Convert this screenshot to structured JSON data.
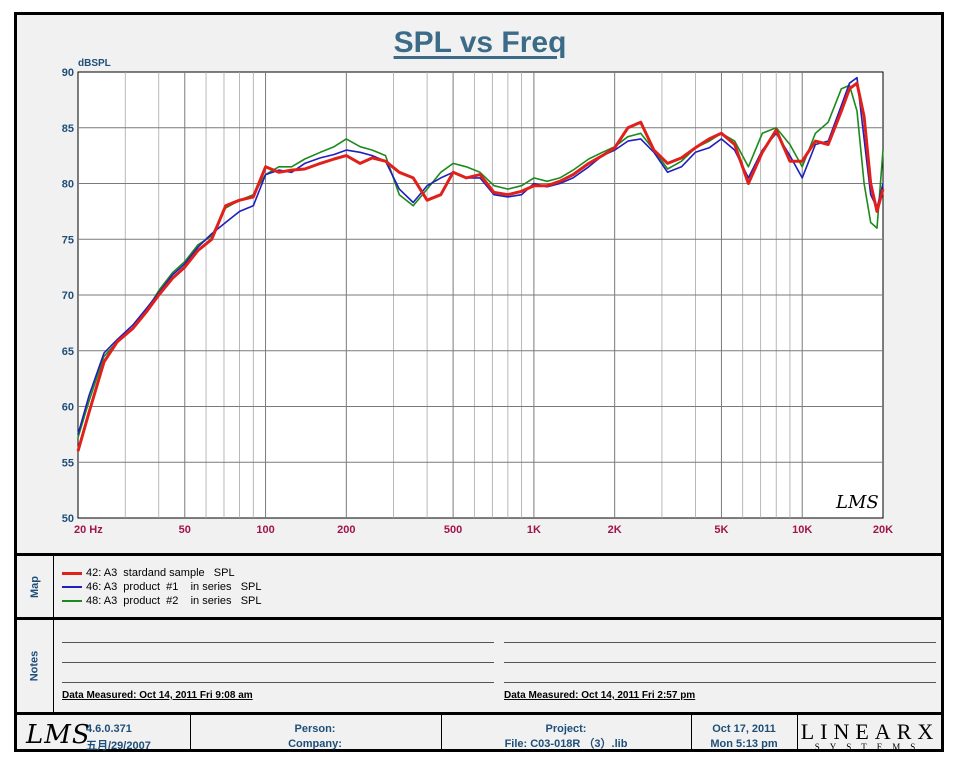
{
  "title": "SPL vs Freq",
  "chart_data": {
    "type": "line",
    "title": "SPL vs Freq",
    "ylabel": "dBSPL",
    "xlabel": "",
    "xscale": "log",
    "xlim": [
      20,
      20000
    ],
    "ylim": [
      50,
      90
    ],
    "grid": true,
    "x_tick_values": [
      20,
      50,
      100,
      200,
      500,
      1000,
      2000,
      5000,
      10000,
      20000
    ],
    "x_tick_labels": [
      "20  Hz",
      "50",
      "100",
      "200",
      "500",
      "1K",
      "2K",
      "5K",
      "10K",
      "20K"
    ],
    "y_tick_values": [
      50,
      55,
      60,
      65,
      70,
      75,
      80,
      85,
      90
    ],
    "y_tick_labels": [
      "50",
      "55",
      "60",
      "65",
      "70",
      "75",
      "80",
      "85",
      "90"
    ],
    "x": [
      20,
      22,
      25,
      28,
      32,
      36,
      40,
      45,
      50,
      56,
      63,
      71,
      80,
      90,
      100,
      112,
      125,
      140,
      160,
      180,
      200,
      225,
      250,
      280,
      315,
      355,
      400,
      450,
      500,
      560,
      630,
      710,
      800,
      900,
      1000,
      1120,
      1250,
      1400,
      1600,
      1800,
      2000,
      2240,
      2500,
      2800,
      3150,
      3550,
      4000,
      4500,
      5000,
      5600,
      6300,
      7100,
      8000,
      9000,
      10000,
      11200,
      12500,
      14000,
      15000,
      16000,
      17000,
      18000,
      19000,
      20000
    ],
    "series": [
      {
        "name": "42: A3  stardand sample   SPL",
        "color": "#e0201b",
        "values": [
          56.0,
          59.5,
          64.0,
          65.8,
          67.0,
          68.5,
          70.0,
          71.5,
          72.5,
          74.0,
          75.0,
          78.0,
          78.5,
          78.8,
          81.5,
          81.0,
          81.2,
          81.3,
          81.8,
          82.2,
          82.5,
          81.8,
          82.3,
          82.0,
          81.0,
          80.5,
          78.5,
          79.0,
          81.0,
          80.5,
          80.8,
          79.2,
          79.0,
          79.3,
          79.8,
          79.8,
          80.2,
          80.8,
          81.8,
          82.5,
          83.2,
          85.0,
          85.5,
          83.0,
          81.8,
          82.3,
          83.2,
          84.0,
          84.5,
          83.5,
          80.0,
          82.8,
          84.8,
          82.0,
          82.0,
          83.8,
          83.5,
          86.5,
          88.5,
          89.0,
          86.0,
          80.0,
          77.5,
          79.5
        ]
      },
      {
        "name": "46: A3  product  #1    in series   SPL",
        "color": "#1f1fbf",
        "values": [
          57.5,
          61.0,
          64.8,
          66.0,
          67.3,
          68.8,
          70.2,
          71.8,
          72.8,
          74.3,
          75.5,
          76.5,
          77.5,
          78.0,
          80.8,
          81.2,
          81.0,
          81.8,
          82.3,
          82.6,
          83.0,
          82.8,
          82.5,
          82.0,
          79.5,
          78.3,
          79.8,
          80.5,
          81.0,
          80.5,
          80.5,
          79.0,
          78.8,
          79.0,
          80.0,
          79.7,
          80.0,
          80.5,
          81.5,
          82.5,
          83.0,
          83.8,
          84.0,
          82.8,
          81.0,
          81.5,
          82.8,
          83.2,
          84.0,
          83.0,
          80.5,
          83.0,
          84.5,
          82.5,
          80.5,
          83.5,
          83.8,
          87.0,
          89.0,
          89.5,
          84.0,
          79.0,
          77.8,
          80.0
        ]
      },
      {
        "name": "48: A3  product  #2    in series   SPL",
        "color": "#1d8a1d",
        "values": [
          57.2,
          60.5,
          64.5,
          65.8,
          67.0,
          68.6,
          70.4,
          72.0,
          73.0,
          74.5,
          75.3,
          77.8,
          78.5,
          79.0,
          80.8,
          81.5,
          81.5,
          82.2,
          82.8,
          83.3,
          84.0,
          83.3,
          83.0,
          82.5,
          79.0,
          78.0,
          79.5,
          81.0,
          81.8,
          81.5,
          81.0,
          79.8,
          79.5,
          79.8,
          80.5,
          80.2,
          80.5,
          81.2,
          82.2,
          82.8,
          83.3,
          84.2,
          84.5,
          83.0,
          81.3,
          82.0,
          83.2,
          83.8,
          84.5,
          83.8,
          81.5,
          84.5,
          85.0,
          83.5,
          81.5,
          84.5,
          85.5,
          88.5,
          88.8,
          86.5,
          80.0,
          76.5,
          76.0,
          83.0
        ]
      }
    ]
  },
  "map": {
    "side_label": "Map",
    "legend": [
      {
        "label": "42: A3  stardand sample   SPL",
        "color": "#e0201b"
      },
      {
        "label": "46: A3  product  #1    in series   SPL",
        "color": "#1f1fbf"
      },
      {
        "label": "48: A3  product  #2    in series   SPL",
        "color": "#1d8a1d"
      }
    ]
  },
  "notes": {
    "side_label": "Notes",
    "left_date": "Data Measured: Oct 14, 2011  Fri  9:08 am",
    "right_date": "Data Measured: Oct 14, 2011  Fri  2:57 pm"
  },
  "footer": {
    "logo": "LMS",
    "version": "4.6.0.371",
    "build_date": "五月/29/2007",
    "person_label": "Person:",
    "company_label": "Company:",
    "project_label": "Project:",
    "file_label": "File: C03-018R   （3）.lib",
    "date": "Oct 17, 2011",
    "time": "Mon  5:13 pm",
    "brand_big": "LINEARX",
    "brand_small": "SYSTEMS"
  }
}
